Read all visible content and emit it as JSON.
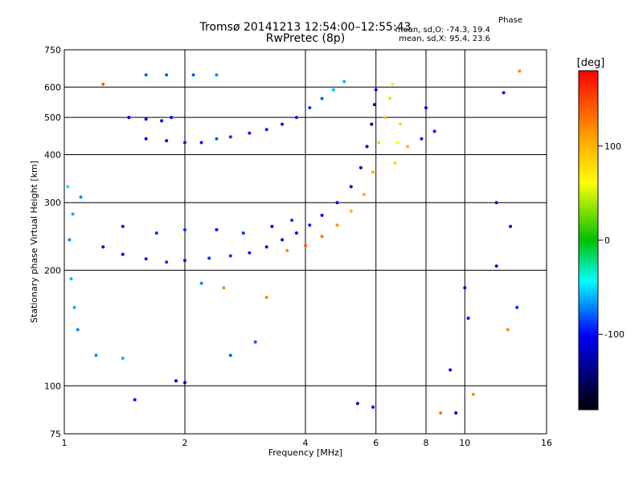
{
  "header": {
    "title": "Tromsø 20141213 12:54:00–12:55:43",
    "subtitle": "RwPretec (8p)",
    "phase_title": "Phase",
    "phase_o": "mean, sd,O: -74.3, 19.4",
    "phase_x": "mean, sd,X:  95.4, 23.6"
  },
  "chart_data": {
    "type": "scatter",
    "xlabel": "Frequency [MHz]",
    "ylabel": "Stationary phase Virtual Height [km]",
    "xscale": "log",
    "yscale": "log",
    "xlim": [
      1,
      16
    ],
    "ylim": [
      75,
      750
    ],
    "xticks": [
      1,
      2,
      4,
      6,
      8,
      10,
      16
    ],
    "yticks": [
      75,
      100,
      200,
      300,
      400,
      500,
      600,
      750
    ],
    "grid": true,
    "colorbar": {
      "label": "[deg]",
      "range": [
        -180,
        180
      ],
      "ticks": [
        100,
        0,
        -100
      ]
    },
    "series": [
      {
        "values": [
          [
            1.45,
            500,
            -110
          ],
          [
            1.6,
            495,
            -110
          ],
          [
            1.75,
            490,
            -105
          ],
          [
            1.85,
            500,
            -100
          ],
          [
            1.6,
            440,
            -105
          ],
          [
            1.8,
            435,
            -100
          ],
          [
            2.0,
            430,
            -95
          ],
          [
            2.2,
            430,
            -95
          ],
          [
            2.4,
            440,
            -80
          ],
          [
            2.6,
            445,
            -90
          ],
          [
            2.9,
            455,
            -95
          ],
          [
            3.2,
            465,
            -95
          ],
          [
            3.5,
            480,
            -100
          ],
          [
            3.8,
            500,
            -95
          ],
          [
            4.1,
            530,
            -90
          ],
          [
            4.4,
            560,
            -80
          ],
          [
            4.7,
            590,
            -60
          ],
          [
            5.0,
            620,
            -60
          ],
          [
            1.6,
            645,
            -80
          ],
          [
            1.8,
            645,
            -80
          ],
          [
            2.1,
            645,
            -80
          ],
          [
            2.4,
            645,
            -70
          ],
          [
            1.25,
            230,
            -110
          ],
          [
            1.4,
            220,
            -100
          ],
          [
            1.6,
            214,
            -95
          ],
          [
            1.8,
            210,
            -90
          ],
          [
            2.0,
            212,
            -95
          ],
          [
            2.3,
            215,
            -90
          ],
          [
            2.6,
            218,
            -90
          ],
          [
            2.9,
            222,
            -95
          ],
          [
            3.2,
            230,
            -100
          ],
          [
            3.5,
            240,
            -100
          ],
          [
            3.8,
            250,
            -100
          ],
          [
            4.1,
            262,
            -95
          ],
          [
            4.4,
            278,
            -100
          ],
          [
            4.8,
            300,
            -105
          ],
          [
            5.2,
            330,
            -110
          ],
          [
            5.5,
            370,
            -120
          ],
          [
            5.7,
            420,
            -130
          ],
          [
            5.85,
            480,
            -130
          ],
          [
            5.95,
            540,
            -120
          ],
          [
            6.0,
            590,
            -110
          ],
          [
            1.4,
            260,
            -100
          ],
          [
            1.7,
            250,
            -90
          ],
          [
            2.0,
            255,
            -90
          ],
          [
            2.4,
            255,
            -100
          ],
          [
            2.8,
            250,
            -90
          ],
          [
            3.3,
            260,
            -100
          ],
          [
            3.7,
            270,
            -90
          ],
          [
            3.6,
            225,
            120
          ],
          [
            4.0,
            232,
            140
          ],
          [
            4.4,
            245,
            130
          ],
          [
            4.8,
            262,
            110
          ],
          [
            5.2,
            285,
            100
          ],
          [
            5.6,
            315,
            100
          ],
          [
            5.9,
            360,
            100
          ],
          [
            6.1,
            430,
            80
          ],
          [
            6.3,
            500,
            90
          ],
          [
            6.5,
            560,
            80
          ],
          [
            6.6,
            610,
            70
          ],
          [
            6.7,
            380,
            80
          ],
          [
            6.8,
            430,
            60
          ],
          [
            6.9,
            480,
            80
          ],
          [
            7.2,
            420,
            100
          ],
          [
            8.0,
            530,
            -110
          ],
          [
            7.8,
            440,
            -100
          ],
          [
            8.4,
            460,
            -100
          ],
          [
            1.02,
            330,
            -50
          ],
          [
            1.05,
            280,
            -60
          ],
          [
            1.04,
            190,
            -60
          ],
          [
            1.06,
            160,
            -60
          ],
          [
            1.08,
            140,
            -70
          ],
          [
            1.1,
            310,
            -70
          ],
          [
            1.03,
            240,
            -70
          ],
          [
            1.9,
            103,
            -120
          ],
          [
            2.0,
            102,
            -120
          ],
          [
            1.2,
            120,
            -70
          ],
          [
            1.4,
            118,
            -60
          ],
          [
            2.6,
            120,
            -80
          ],
          [
            3.0,
            130,
            -80
          ],
          [
            5.4,
            90,
            -120
          ],
          [
            5.9,
            88,
            -100
          ],
          [
            1.5,
            92,
            -100
          ],
          [
            2.2,
            185,
            -70
          ],
          [
            9.2,
            110,
            -100
          ],
          [
            10.0,
            180,
            -120
          ],
          [
            12.0,
            205,
            -110
          ],
          [
            9.5,
            85,
            -110
          ],
          [
            8.7,
            85,
            130
          ],
          [
            10.5,
            95,
            120
          ],
          [
            12.8,
            140,
            120
          ],
          [
            12.0,
            300,
            -100
          ],
          [
            13.0,
            260,
            -100
          ],
          [
            13.5,
            160,
            -90
          ],
          [
            12.5,
            580,
            -100
          ],
          [
            13.7,
            660,
            120
          ],
          [
            10.2,
            150,
            -100
          ],
          [
            1.25,
            610,
            140
          ],
          [
            2.5,
            180,
            120
          ],
          [
            3.2,
            170,
            120
          ]
        ]
      }
    ]
  }
}
